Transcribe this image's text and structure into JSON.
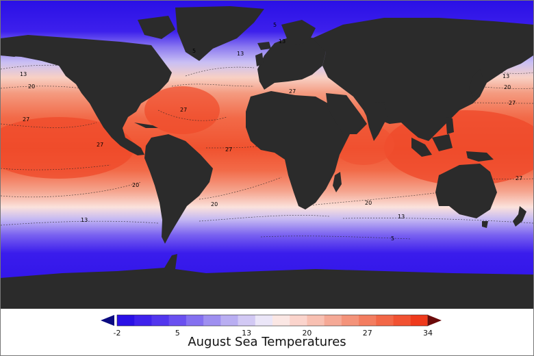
{
  "title": "August Sea Temperatures",
  "colorbar": {
    "min": -2,
    "max": 34,
    "ticks": [
      "-2",
      "5",
      "13",
      "20",
      "27",
      "34"
    ],
    "colors": [
      "#2a10e6",
      "#3f22ec",
      "#5236ee",
      "#6a50f0",
      "#8470f0",
      "#9e8ff0",
      "#b9aef2",
      "#d2c9f4",
      "#ebe6f8",
      "#fbe7e4",
      "#fbd4cc",
      "#f8c0b2",
      "#f5a996",
      "#f4937a",
      "#f37d60",
      "#f26747",
      "#f15232",
      "#ef3a1c"
    ],
    "arrow_left_color": "#0a0a80",
    "arrow_right_color": "#6b0a0a"
  },
  "map": {
    "land_color": "#2b2b2b",
    "ocean_cold_color": "#2a10e6",
    "ocean_warm_color": "#ef4a2a",
    "isotherm_labels": [
      {
        "text": "5",
        "value": 5
      },
      {
        "text": "5",
        "value": 5
      },
      {
        "text": "5",
        "value": 5
      },
      {
        "text": "13",
        "value": 13
      },
      {
        "text": "13",
        "value": 13
      },
      {
        "text": "13",
        "value": 13
      },
      {
        "text": "13",
        "value": 13
      },
      {
        "text": "13",
        "value": 13
      },
      {
        "text": "13",
        "value": 13
      },
      {
        "text": "20",
        "value": 20
      },
      {
        "text": "20",
        "value": 20
      },
      {
        "text": "20",
        "value": 20
      },
      {
        "text": "20",
        "value": 20
      },
      {
        "text": "20",
        "value": 20
      },
      {
        "text": "27",
        "value": 27
      },
      {
        "text": "27",
        "value": 27
      },
      {
        "text": "27",
        "value": 27
      },
      {
        "text": "27",
        "value": 27
      },
      {
        "text": "27",
        "value": 27
      },
      {
        "text": "27",
        "value": 27
      },
      {
        "text": "27",
        "value": 27
      }
    ]
  }
}
